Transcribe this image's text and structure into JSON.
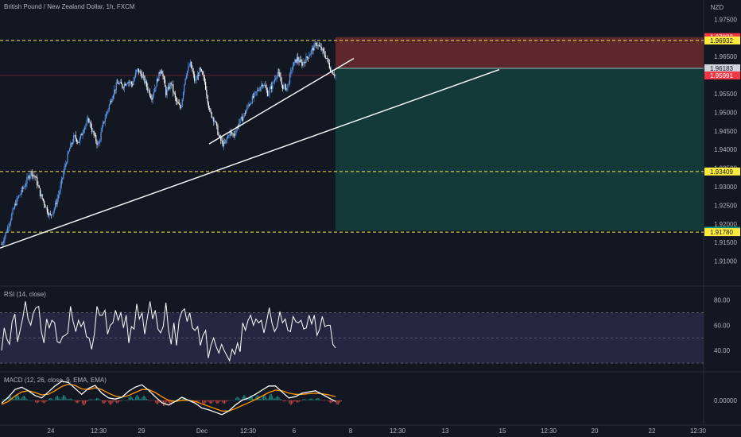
{
  "header": {
    "symbol_title": "British Pound / New Zealand Dollar, 1h, FXCM"
  },
  "price_axis": {
    "unit": "NZD",
    "min": 1.905,
    "max": 1.9755,
    "ticks": [
      "1.97500",
      "1.96500",
      "1.95500",
      "1.95000",
      "1.94500",
      "1.94000",
      "1.93500",
      "1.93000",
      "1.92500",
      "1.92000",
      "1.91500",
      "1.91000"
    ],
    "tick_values": [
      1.975,
      1.965,
      1.955,
      1.95,
      1.945,
      1.94,
      1.935,
      1.93,
      1.925,
      1.92,
      1.915,
      1.91
    ]
  },
  "price_tags": [
    {
      "label": "1.97022",
      "value": 1.97022,
      "bg": "#f23645",
      "fg": "#ffffff"
    },
    {
      "label": "1.96932",
      "value": 1.96932,
      "bg": "#ffeb3b",
      "fg": "#131722"
    },
    {
      "label": "1.96183",
      "value": 1.96183,
      "bg": "#d1d4dc",
      "fg": "#131722"
    },
    {
      "label": "1.95991",
      "value": 1.95991,
      "bg": "#f23645",
      "fg": "#ffffff"
    },
    {
      "label": "1.93409",
      "value": 1.93409,
      "bg": "#ffeb3b",
      "fg": "#131722"
    },
    {
      "label": "1.91816",
      "value": 1.91816,
      "bg": "#089981",
      "fg": "#ffffff"
    },
    {
      "label": "1.91780",
      "value": 1.9178,
      "bg": "#ffeb3b",
      "fg": "#131722"
    }
  ],
  "levels": [
    {
      "value": 1.96932,
      "color": "#ffeb3b"
    },
    {
      "value": 1.93409,
      "color": "#ffeb3b"
    },
    {
      "value": 1.9178,
      "color": "#ffeb3b"
    }
  ],
  "position": {
    "entry": 1.96183,
    "stop": 1.97022,
    "target": 1.91816,
    "stop_fill": "#6b2a2f",
    "target_fill": "#133c3a"
  },
  "time_axis": {
    "labels": [
      "24",
      "12:30",
      "29",
      "Dec",
      "12:30",
      "6",
      "8",
      "12:30",
      "13",
      "15",
      "12:30",
      "20",
      "22",
      "12:30"
    ]
  },
  "rsi": {
    "title": "RSI (14, close)",
    "ticks": [
      "80.00",
      "60.00",
      "40.00"
    ],
    "tick_values": [
      80,
      60,
      40
    ],
    "upper": 70,
    "middle": 50,
    "lower": 30,
    "min": 25,
    "max": 88,
    "line_color": "#ffffff",
    "band_fill": "#2a2744",
    "values": [
      40,
      58,
      49,
      45,
      63,
      69,
      47,
      56,
      66,
      79,
      65,
      60,
      70,
      74,
      75,
      55,
      46,
      65,
      58,
      64,
      62,
      47,
      46,
      51,
      52,
      54,
      75,
      63,
      55,
      64,
      59,
      63,
      51,
      50,
      41,
      53,
      75,
      68,
      68,
      72,
      53,
      60,
      62,
      72,
      64,
      70,
      58,
      68,
      46,
      59,
      57,
      77,
      65,
      70,
      53,
      66,
      79,
      65,
      72,
      57,
      54,
      59,
      78,
      56,
      45,
      62,
      44,
      64,
      71,
      73,
      63,
      70,
      58,
      56,
      59,
      44,
      52,
      56,
      34,
      44,
      50,
      43,
      38,
      45,
      40,
      36,
      32,
      41,
      37,
      46,
      39,
      62,
      56,
      64,
      68,
      60,
      65,
      62,
      64,
      54,
      63,
      74,
      62,
      55,
      59,
      71,
      62,
      65,
      56,
      55,
      67,
      63,
      62,
      64,
      57,
      58,
      68,
      61,
      68,
      52,
      57,
      67,
      59,
      60,
      60,
      45,
      42
    ]
  },
  "macd": {
    "title": "MACD (12, 26, close, 9, EMA, EMA)",
    "ticks": [
      "0.00000"
    ],
    "tick_values": [
      0
    ],
    "min": -0.0035,
    "max": 0.0045,
    "macd": [
      -0.0005,
      0.0005,
      0.0018,
      0.0022,
      0.0016,
      0.0008,
      0.0004,
      0.0014,
      0.0024,
      0.0032,
      0.003,
      0.002,
      0.001,
      0.002,
      0.0025,
      0.0012,
      0.0004,
      0.0002,
      0.0005,
      0.0015,
      0.0022,
      0.0026,
      0.0017,
      0.0006,
      -0.0004,
      -0.0008,
      -0.0002,
      0.0005,
      0.0,
      -0.0005,
      -0.0013,
      -0.0016,
      -0.002,
      -0.0024,
      -0.0018,
      -0.0008,
      0.0,
      0.0004,
      0.001,
      0.0017,
      0.0024,
      0.0024,
      0.0014,
      0.0004,
      0.0006,
      0.0012,
      0.0014,
      0.0016,
      0.001,
      0.0004,
      -0.0002
    ],
    "signal": [
      -0.0007,
      -0.0002,
      0.0007,
      0.0014,
      0.0016,
      0.0013,
      0.0009,
      0.001,
      0.0016,
      0.0023,
      0.0027,
      0.0025,
      0.0019,
      0.0018,
      0.0021,
      0.0018,
      0.0012,
      0.0007,
      0.0005,
      0.0008,
      0.0013,
      0.0018,
      0.0018,
      0.0013,
      0.0006,
      0.0,
      -0.0002,
      0.0,
      0.0,
      -0.0002,
      -0.0006,
      -0.001,
      -0.0014,
      -0.0018,
      -0.0018,
      -0.0014,
      -0.0009,
      -0.0004,
      0.0001,
      0.0007,
      0.0013,
      0.0017,
      0.0016,
      0.0012,
      0.001,
      0.001,
      0.0011,
      0.0012,
      0.0011,
      0.0009,
      0.0006
    ],
    "macd_color": "#ffffff",
    "signal_color": "#ff9800",
    "hist_pos": "#26a69a",
    "hist_neg": "#ef5350"
  },
  "chart_data": {
    "type": "line",
    "title": "British Pound / New Zealand Dollar, 1h, FXCM",
    "ylabel": "NZD",
    "ylim": [
      1.905,
      1.9755
    ],
    "series": [
      {
        "name": "",
        "values": [
          1.9145,
          1.918,
          1.922,
          1.926,
          1.9285,
          1.931,
          1.934,
          1.9325,
          1.928,
          1.925,
          1.922,
          1.9245,
          1.929,
          1.935,
          1.94,
          1.9435,
          1.942,
          1.946,
          1.948,
          1.944,
          1.941,
          1.947,
          1.951,
          1.955,
          1.958,
          1.957,
          1.9585,
          1.9575,
          1.9615,
          1.96,
          1.957,
          1.954,
          1.958,
          1.962,
          1.955,
          1.958,
          1.953,
          1.951,
          1.96,
          1.963,
          1.958,
          1.9615,
          1.958,
          1.95,
          1.948,
          1.943,
          1.941,
          1.9445,
          1.944,
          1.947,
          1.949,
          1.952,
          1.954,
          1.956,
          1.958,
          1.955,
          1.9575,
          1.961,
          1.957,
          1.9565,
          1.962,
          1.9645,
          1.963,
          1.9645,
          1.9665,
          1.9685,
          1.967,
          1.965,
          1.9615,
          1.96
        ]
      },
      {
        "name": "",
        "values": [
          1.9135,
          1.9435,
          1.9615
        ],
        "x": [
          0,
          41,
          62
        ]
      },
      {
        "name": "",
        "values": [
          1.9415,
          1.9555,
          1.9645
        ],
        "x": [
          38,
          56,
          64
        ]
      }
    ]
  }
}
